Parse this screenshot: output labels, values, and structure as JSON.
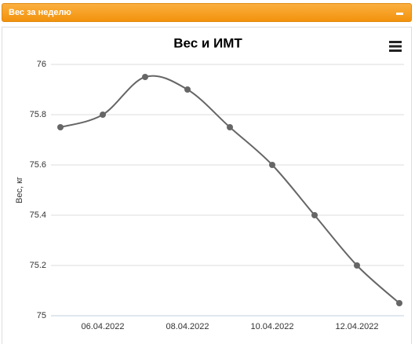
{
  "header": {
    "title": "Вес за неделю"
  },
  "chart_data": {
    "type": "line",
    "title": "Вес и ИМТ",
    "y_label": "Вес, кг",
    "categories": [
      null,
      "06.04.2022",
      null,
      "08.04.2022",
      null,
      "10.04.2022",
      null,
      "12.04.2022",
      null
    ],
    "series": [
      {
        "color": "#666666",
        "values": [
          75.75,
          75.8,
          75.95,
          75.9,
          75.75,
          75.6,
          75.4,
          75.2,
          75.05
        ]
      }
    ],
    "ylim": [
      75,
      76
    ],
    "yticks": [
      75,
      75.2,
      75.4,
      75.6,
      75.8,
      76
    ],
    "grid": true
  }
}
